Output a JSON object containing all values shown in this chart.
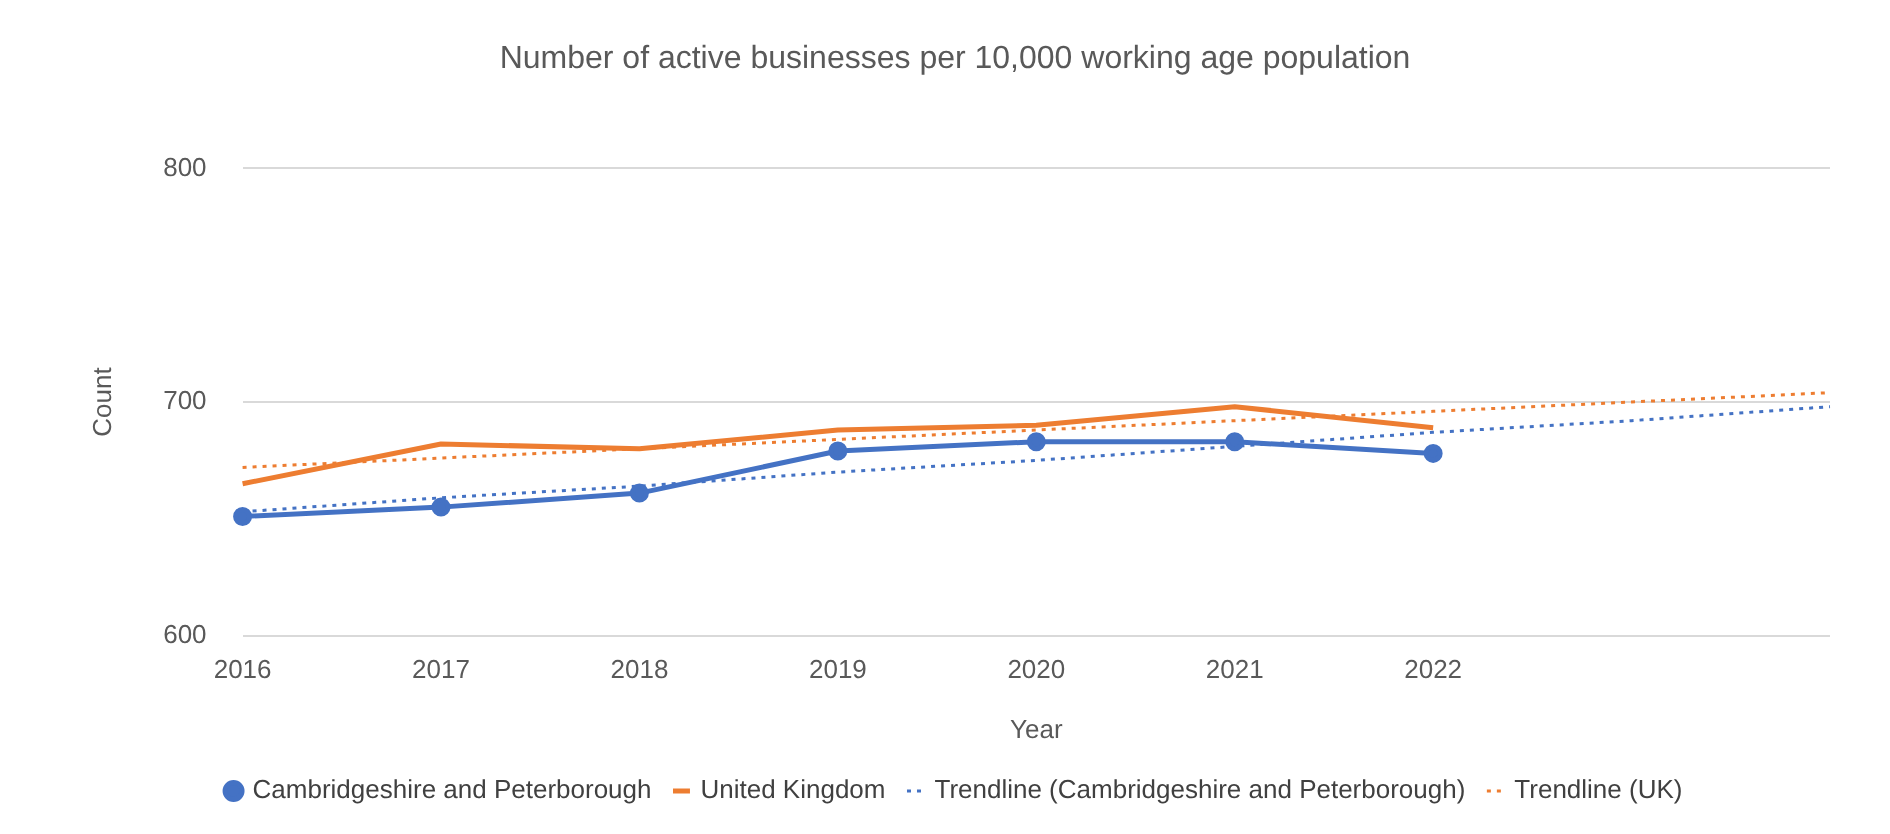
{
  "chart_data": {
    "type": "line",
    "title": "Number of active businesses per 10,000 working age population",
    "xlabel": "Year",
    "ylabel": "Count",
    "categories": [
      "2016",
      "2017",
      "2018",
      "2019",
      "2020",
      "2021",
      "2022",
      null,
      null
    ],
    "ylim": [
      600,
      800
    ],
    "yticks": [
      600,
      700,
      800
    ],
    "grid": "y",
    "legend": "bottom",
    "series": [
      {
        "name": "Cambridgeshire and Peterborough",
        "color": "#4472c4",
        "marker": "circle",
        "line_style": "solid",
        "values": [
          651,
          655,
          661,
          679,
          683,
          683,
          678,
          null,
          null
        ]
      },
      {
        "name": "United Kingdom",
        "color": "#ed7d31",
        "marker": "none",
        "line_style": "solid",
        "values": [
          665,
          682,
          680,
          688,
          690,
          698,
          689,
          null,
          null
        ]
      },
      {
        "name": "Trendline (Cambridgeshire and Peterborough)",
        "color": "#4472c4",
        "marker": "none",
        "line_style": "dotted",
        "values": [
          653,
          659,
          664,
          670,
          675,
          681,
          687,
          692,
          698
        ]
      },
      {
        "name": "Trendline (UK)",
        "color": "#ed7d31",
        "marker": "none",
        "line_style": "dotted",
        "values": [
          672,
          676,
          680,
          684,
          688,
          692,
          696,
          700,
          704
        ]
      }
    ]
  }
}
